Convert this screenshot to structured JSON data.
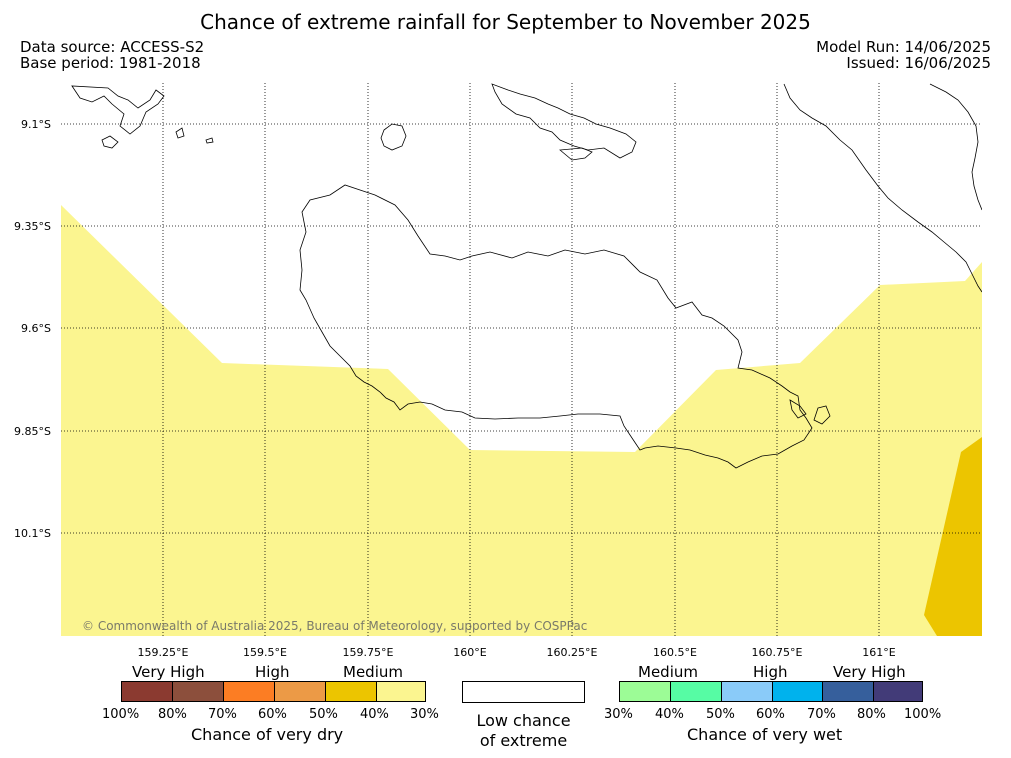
{
  "header": {
    "title": "Chance of extreme rainfall for September to November 2025",
    "data_source": "Data source: ACCESS-S2",
    "base_period": "Base period: 1981-2018",
    "model_run": "Model Run: 14/06/2025",
    "issued": "Issued: 16/06/2025"
  },
  "map": {
    "latitude_labels": [
      "9.1°S",
      "9.35°S",
      "9.6°S",
      "9.85°S",
      "10.1°S"
    ],
    "longitude_labels": [
      "159.25°E",
      "159.5°E",
      "159.75°E",
      "160°E",
      "160.25°E",
      "160.5°E",
      "160.75°E",
      "161°E"
    ],
    "copyright": "© Commonwealth of Australia 2025, Bureau of Meteorology, supported by COSPPac",
    "colors": {
      "medium_dry": "#fbf590",
      "high_dry_50": "#ecc500",
      "coast": "#000000",
      "grid": "#000000"
    }
  },
  "legend": {
    "dry": {
      "categories": [
        "Very High",
        "High",
        "Medium"
      ],
      "colors": [
        "#8b3a30",
        "#8c4f3c",
        "#fc7d23",
        "#ec9a46",
        "#ecc500",
        "#fbf590"
      ],
      "ticks": [
        "100%",
        "80%",
        "70%",
        "60%",
        "50%",
        "40%",
        "30%"
      ],
      "caption": "Chance of very dry"
    },
    "low": {
      "caption_line1": "Low chance",
      "caption_line2": "of extreme",
      "color": "#ffffff"
    },
    "wet": {
      "categories": [
        "Medium",
        "High",
        "Very High"
      ],
      "colors": [
        "#9cfc96",
        "#56fca4",
        "#8acbf9",
        "#00b2ed",
        "#365f9c",
        "#423b78"
      ],
      "ticks": [
        "30%",
        "40%",
        "50%",
        "60%",
        "70%",
        "80%",
        "100%"
      ],
      "caption": "Chance of very wet"
    }
  }
}
